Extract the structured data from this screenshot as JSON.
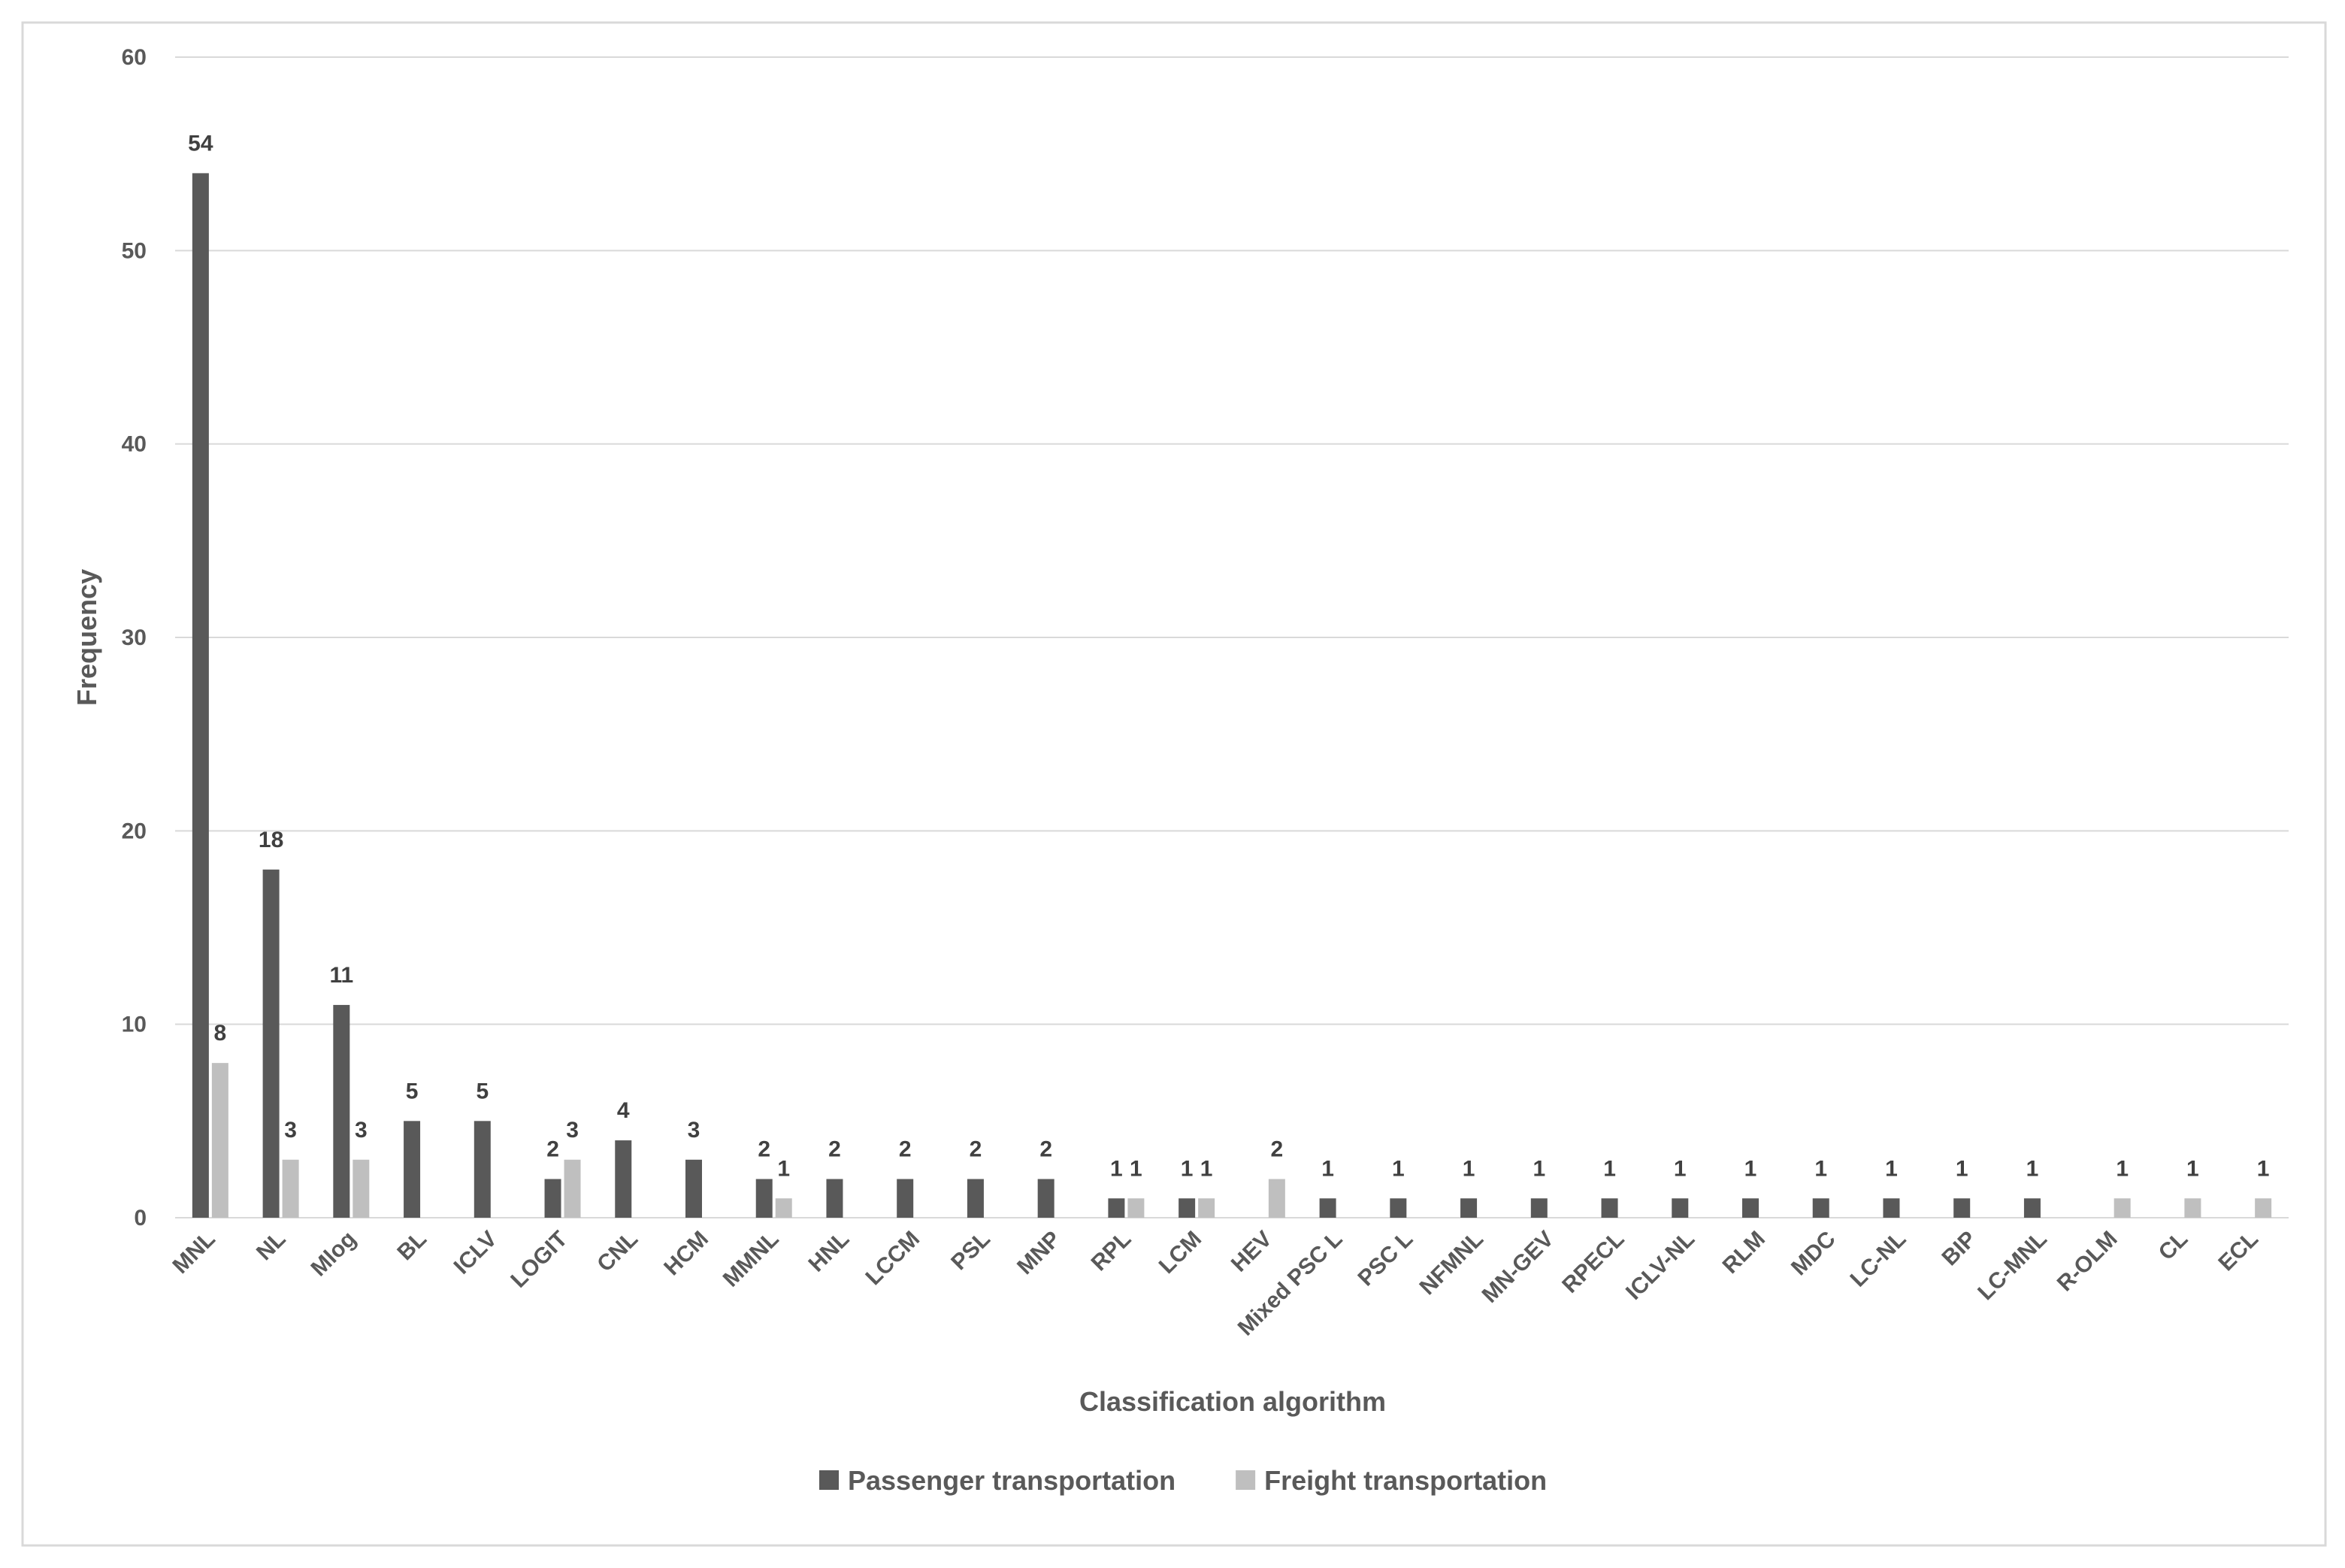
{
  "chart_data": {
    "type": "bar",
    "x_label": "Classification algorithm",
    "y_label": "Frequency",
    "categories": [
      "MNL",
      "NL",
      "Mlog",
      "BL",
      "ICLV",
      "LOGIT",
      "CNL",
      "HCM",
      "MMNL",
      "HNL",
      "LCCM",
      "PSL",
      "MNP",
      "RPL",
      "LCM",
      "HEV",
      "Mixed PSC L",
      "PSC L",
      "NFMNL",
      "MN-GEV",
      "RPECL",
      "ICLV-NL",
      "RLM",
      "MDC",
      "LC-NL",
      "BIP",
      "LC-MNL",
      "R-OLM",
      "CL",
      "ECL"
    ],
    "series": [
      {
        "name": "Passenger transportation",
        "color": "#595959",
        "values": [
          54,
          18,
          11,
          5,
          5,
          2,
          4,
          3,
          2,
          2,
          2,
          2,
          2,
          1,
          1,
          null,
          1,
          1,
          1,
          1,
          1,
          1,
          1,
          1,
          1,
          1,
          1,
          null,
          null,
          null
        ]
      },
      {
        "name": "Freight transportation",
        "color": "#bfbfbf",
        "values": [
          8,
          3,
          3,
          null,
          null,
          3,
          null,
          null,
          1,
          null,
          null,
          null,
          null,
          1,
          1,
          2,
          null,
          null,
          null,
          null,
          null,
          null,
          null,
          null,
          null,
          null,
          null,
          1,
          1,
          1
        ]
      }
    ],
    "ylim": [
      0,
      60
    ],
    "yticks": [
      0,
      10,
      20,
      30,
      40,
      50,
      60
    ],
    "grid": true,
    "legend": "bottom"
  }
}
